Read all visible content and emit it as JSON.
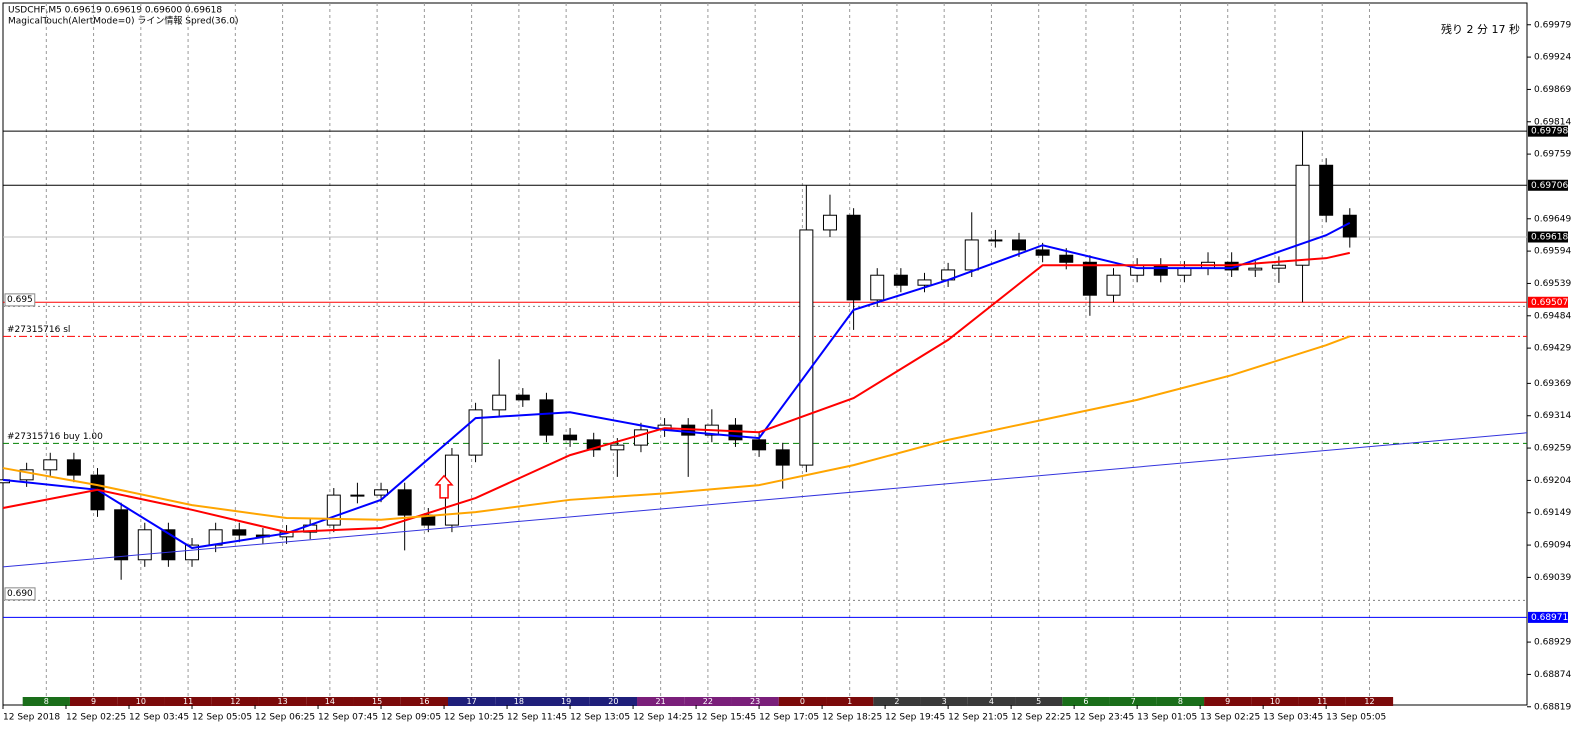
{
  "chart_data": {
    "type": "candlestick",
    "title": "USDCHF,M5  0.69619 0.69619 0.69600 0.69618",
    "subtitle": "MagicalTouch(AlertMode=0) ライン情報 Spred(36.0)",
    "timer": "残り 2 分 17 秒",
    "xlim": [
      0,
      387
    ],
    "ylim": [
      0.68822,
      0.70016
    ],
    "x": [
      0,
      6,
      12,
      18,
      24,
      30,
      36,
      42,
      48,
      54,
      60,
      66,
      72,
      78,
      84,
      90,
      96,
      102,
      108,
      114,
      120,
      126,
      132,
      138,
      144,
      150,
      156,
      162,
      168,
      174,
      180,
      186,
      192,
      198,
      204,
      210,
      216,
      222,
      228,
      234,
      240,
      246,
      252,
      258,
      264,
      270,
      276,
      282,
      288,
      294,
      300,
      306,
      312,
      318,
      324,
      330,
      336,
      342
    ],
    "open": [
      0.692,
      0.69205,
      0.69222,
      0.69239,
      0.69213,
      0.69154,
      0.69069,
      0.6912,
      0.69069,
      0.69094,
      0.6912,
      0.69111,
      0.69108,
      0.69116,
      0.69128,
      0.69179,
      0.69179,
      0.69188,
      0.69145,
      0.69128,
      0.69247,
      0.69324,
      0.69349,
      0.69341,
      0.69281,
      0.69273,
      0.69256,
      0.69264,
      0.6929,
      0.69298,
      0.69281,
      0.69298,
      0.69273,
      0.69256,
      0.6923,
      0.6963,
      0.69655,
      0.69511,
      0.69553,
      0.69536,
      0.69545,
      0.69562,
      0.69613,
      0.69613,
      0.69596,
      0.69587,
      0.69575,
      0.69519,
      0.69553,
      0.6957,
      0.69553,
      0.69565,
      0.69575,
      0.69562,
      0.69565,
      0.6957,
      0.6974,
      0.69655
    ],
    "high": [
      0.69217,
      0.69234,
      0.69251,
      0.69251,
      0.69225,
      0.69166,
      0.69132,
      0.69132,
      0.69106,
      0.69132,
      0.69132,
      0.69123,
      0.69128,
      0.6914,
      0.69191,
      0.692,
      0.692,
      0.692,
      0.69157,
      0.69259,
      0.69336,
      0.6941,
      0.69361,
      0.69353,
      0.69293,
      0.69285,
      0.69276,
      0.69302,
      0.6931,
      0.6931,
      0.69325,
      0.6931,
      0.69285,
      0.69268,
      0.69706,
      0.6969,
      0.69667,
      0.69565,
      0.69565,
      0.69557,
      0.69574,
      0.6966,
      0.6963,
      0.69625,
      0.69608,
      0.69599,
      0.69587,
      0.69565,
      0.69582,
      0.69582,
      0.69577,
      0.69592,
      0.69592,
      0.69577,
      0.69585,
      0.69798,
      0.69752,
      0.69667
    ],
    "low": [
      0.69188,
      0.69193,
      0.6921,
      0.69201,
      0.69142,
      0.69035,
      0.69057,
      0.69057,
      0.69057,
      0.69082,
      0.69099,
      0.69096,
      0.69096,
      0.69104,
      0.69116,
      0.69165,
      0.69167,
      0.69085,
      0.69116,
      0.69116,
      0.69235,
      0.69312,
      0.69329,
      0.69269,
      0.69261,
      0.69244,
      0.6921,
      0.69252,
      0.69278,
      0.6921,
      0.69269,
      0.69261,
      0.69244,
      0.6919,
      0.69218,
      0.69618,
      0.6946,
      0.69499,
      0.69524,
      0.69524,
      0.69533,
      0.6955,
      0.696,
      0.69584,
      0.69575,
      0.69563,
      0.69484,
      0.69507,
      0.69541,
      0.69541,
      0.69541,
      0.69553,
      0.6955,
      0.6955,
      0.6954,
      0.69507,
      0.69643,
      0.696
    ],
    "close": [
      0.69205,
      0.69222,
      0.69239,
      0.69213,
      0.69154,
      0.69069,
      0.6912,
      0.69069,
      0.69094,
      0.6912,
      0.69111,
      0.69108,
      0.69116,
      0.69128,
      0.69179,
      0.69179,
      0.69188,
      0.69145,
      0.69128,
      0.69247,
      0.69324,
      0.69349,
      0.69341,
      0.69281,
      0.69273,
      0.69256,
      0.69264,
      0.6929,
      0.69298,
      0.69281,
      0.69298,
      0.69273,
      0.69256,
      0.6923,
      0.6963,
      0.69655,
      0.69511,
      0.69553,
      0.69536,
      0.69545,
      0.69562,
      0.69613,
      0.69613,
      0.69596,
      0.69587,
      0.69575,
      0.69519,
      0.69553,
      0.6957,
      0.69553,
      0.69565,
      0.69575,
      0.69562,
      0.69565,
      0.6957,
      0.6974,
      0.69655,
      0.69618
    ],
    "up_color": "#ffffff",
    "down_color": "#000000",
    "lines": [
      {
        "color": "#0000ff",
        "x": [
          0,
          24,
          48,
          72,
          96,
          120,
          144,
          168,
          192,
          216,
          240,
          264,
          288,
          312,
          336,
          342
        ],
        "values": [
          0.69205,
          0.69188,
          0.69089,
          0.69114,
          0.69171,
          0.6931,
          0.6932,
          0.6929,
          0.69276,
          0.69494,
          0.69545,
          0.69604,
          0.69565,
          0.69565,
          0.69621,
          0.69642
        ]
      },
      {
        "color": "#ff0000",
        "x": [
          0,
          24,
          48,
          72,
          96,
          120,
          144,
          168,
          192,
          216,
          240,
          264,
          288,
          312,
          336,
          342
        ],
        "values": [
          0.69157,
          0.69188,
          0.69154,
          0.69116,
          0.69123,
          0.69174,
          0.69247,
          0.69293,
          0.69286,
          0.69344,
          0.69443,
          0.6957,
          0.6957,
          0.6957,
          0.69582,
          0.69591
        ]
      },
      {
        "color": "#ffa500",
        "x": [
          0,
          24,
          48,
          72,
          96,
          120,
          144,
          168,
          192,
          216,
          240,
          264,
          288,
          312,
          336,
          342
        ],
        "values": [
          0.69225,
          0.69196,
          0.69162,
          0.6914,
          0.69137,
          0.6915,
          0.69171,
          0.69182,
          0.69196,
          0.6923,
          0.69273,
          0.69307,
          0.69341,
          0.69383,
          0.69434,
          0.69449
        ]
      },
      {
        "color": "#3333dd",
        "x": [
          0,
          387
        ],
        "values": [
          0.69057,
          0.69285
        ]
      }
    ],
    "levels": [
      {
        "value": 0.69798,
        "color": "#000000",
        "box": "#000000"
      },
      {
        "value": 0.69706,
        "color": "#000000",
        "box": "#000000"
      },
      {
        "value": 0.69618,
        "color": "#c0c0c0",
        "box": "#000000"
      },
      {
        "value": 0.69507,
        "color": "#ff0000",
        "box": "#ff0000"
      },
      {
        "value": 0.695,
        "color": "#808080",
        "dash": "2,3",
        "label": "0.695"
      },
      {
        "value": 0.69449,
        "color": "#ff0000",
        "dash": "8,3,2,3",
        "label": "#27315716 sl"
      },
      {
        "value": 0.69267,
        "color": "#008000",
        "dash": "6,4",
        "label": "#27315716 buy 1.00"
      },
      {
        "value": 0.69,
        "color": "#808080",
        "dash": "2,3",
        "label": "0.690"
      },
      {
        "value": 0.68971,
        "color": "#0000ff",
        "box": "#0000ff"
      }
    ],
    "signals": [
      {
        "x": 112,
        "y": 0.69188,
        "color": "#ff0000"
      }
    ],
    "yticks": [
      0.69979,
      0.69924,
      0.69869,
      0.69814,
      0.69759,
      0.69649,
      0.69594,
      0.69539,
      0.69484,
      0.69429,
      0.69369,
      0.69314,
      0.69259,
      0.69204,
      0.69149,
      0.69094,
      0.69039,
      0.68929,
      0.68874,
      0.68819
    ],
    "xticks": [
      {
        "value": 0,
        "label": "12 Sep 2018"
      },
      {
        "value": 16,
        "label": "12 Sep 02:25"
      },
      {
        "value": 32,
        "label": "12 Sep 03:45"
      },
      {
        "value": 48,
        "label": "12 Sep 05:05"
      },
      {
        "value": 64,
        "label": "12 Sep 06:25"
      },
      {
        "value": 80,
        "label": "12 Sep 07:45"
      },
      {
        "value": 96,
        "label": "12 Sep 09:05"
      },
      {
        "value": 112,
        "label": "12 Sep 10:25"
      },
      {
        "value": 128,
        "label": "12 Sep 11:45"
      },
      {
        "value": 144,
        "label": "12 Sep 13:05"
      },
      {
        "value": 160,
        "label": "12 Sep 14:25"
      },
      {
        "value": 176,
        "label": "12 Sep 15:45"
      },
      {
        "value": 192,
        "label": "12 Sep 17:05"
      },
      {
        "value": 208,
        "label": "12 Sep 18:25"
      },
      {
        "value": 224,
        "label": "12 Sep 19:45"
      },
      {
        "value": 240,
        "label": "12 Sep 21:05"
      },
      {
        "value": 256,
        "label": "12 Sep 22:25"
      },
      {
        "value": 272,
        "label": "12 Sep 23:45"
      },
      {
        "value": 288,
        "label": "13 Sep 01:05"
      },
      {
        "value": 304,
        "label": "13 Sep 02:25"
      },
      {
        "value": 320,
        "label": "13 Sep 03:45"
      },
      {
        "value": 336,
        "label": "13 Sep 05:05"
      }
    ],
    "hours": {
      "x": [
        11,
        23,
        35,
        47,
        59,
        71,
        83,
        95,
        107,
        119,
        131,
        143,
        155,
        167,
        179,
        191,
        203,
        215,
        227,
        239,
        251,
        263,
        275,
        287,
        299,
        311,
        323,
        335,
        347
      ],
      "labels": [
        "8",
        "9",
        "10",
        "11",
        "12",
        "13",
        "14",
        "15",
        "16",
        "17",
        "18",
        "19",
        "20",
        "21",
        "22",
        "23",
        "0",
        "1",
        "2",
        "3",
        "4",
        "5",
        "6",
        "7",
        "8",
        "9",
        "10",
        "11",
        "12"
      ],
      "colors": [
        "#1a6e1a",
        "#7b0a0a",
        "#7b0a0a",
        "#7b0a0a",
        "#7b0a0a",
        "#7b0a0a",
        "#7b0a0a",
        "#7b0a0a",
        "#7b0a0a",
        "#1f1f7a",
        "#1f1f7a",
        "#1f1f7a",
        "#1f1f7a",
        "#7a1f7a",
        "#7a1f7a",
        "#7a1f7a",
        "#7b0a0a",
        "#7b0a0a",
        "#3a3a3a",
        "#3a3a3a",
        "#3a3a3a",
        "#3a3a3a",
        "#1a6e1a",
        "#1a6e1a",
        "#1a6e1a",
        "#7b0a0a",
        "#7b0a0a",
        "#7b0a0a",
        "#7b0a0a"
      ]
    },
    "grid": true
  }
}
